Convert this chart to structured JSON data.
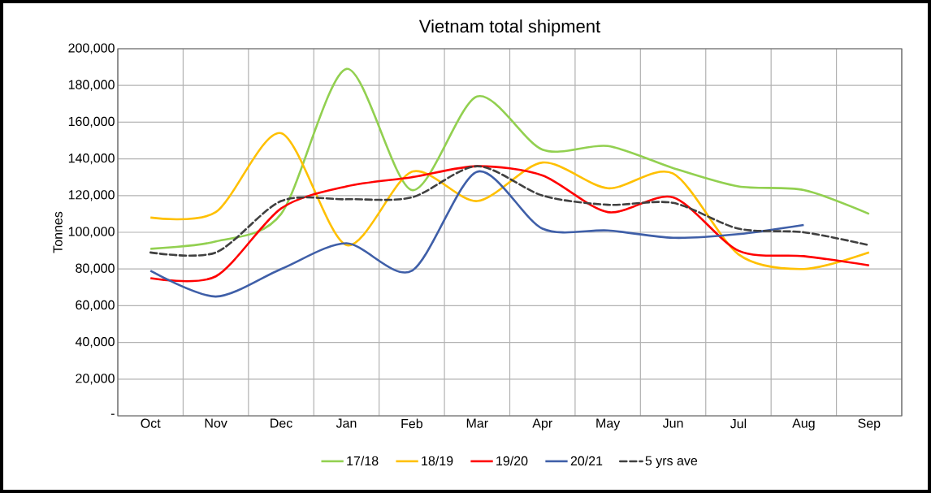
{
  "chart_data": {
    "type": "line",
    "title": "Vietnam total shipment",
    "ylabel": "Tonnes",
    "categories": [
      "Oct",
      "Nov",
      "Dec",
      "Jan",
      "Feb",
      "Mar",
      "Apr",
      "May",
      "Jun",
      "Jul",
      "Aug",
      "Sep"
    ],
    "series": [
      {
        "name": "17/18",
        "color": "#92d050",
        "values": [
          91000,
          95000,
          110000,
          189000,
          123000,
          174000,
          145000,
          147000,
          135000,
          125000,
          123000,
          110000
        ]
      },
      {
        "name": "18/19",
        "color": "#ffc000",
        "values": [
          108000,
          111000,
          154000,
          93000,
          133000,
          117000,
          138000,
          124000,
          132000,
          88000,
          80000,
          89000
        ]
      },
      {
        "name": "19/20",
        "color": "#ff0000",
        "values": [
          75000,
          76000,
          113000,
          125000,
          130000,
          136000,
          131000,
          111000,
          119000,
          90000,
          87000,
          82000
        ]
      },
      {
        "name": "20/21",
        "color": "#3f5fa8",
        "values": [
          79000,
          65000,
          80000,
          94000,
          79000,
          133000,
          102000,
          101000,
          97000,
          99000,
          104000,
          null
        ]
      },
      {
        "name": "5 yrs ave",
        "color": "#404040",
        "line_style": "dashed",
        "values": [
          89000,
          89000,
          117000,
          118000,
          119000,
          136000,
          120000,
          115000,
          116000,
          102000,
          100000,
          93000
        ]
      }
    ],
    "ylim": [
      0,
      200000
    ],
    "yticks": [
      {
        "value": 0,
        "label": "-"
      },
      {
        "value": 20000,
        "label": "20,000"
      },
      {
        "value": 40000,
        "label": "40,000"
      },
      {
        "value": 60000,
        "label": "60,000"
      },
      {
        "value": 80000,
        "label": "80,000"
      },
      {
        "value": 100000,
        "label": "100,000"
      },
      {
        "value": 120000,
        "label": "120,000"
      },
      {
        "value": 140000,
        "label": "140,000"
      },
      {
        "value": 160000,
        "label": "160,000"
      },
      {
        "value": 180000,
        "label": "180,000"
      },
      {
        "value": 200000,
        "label": "200,000"
      }
    ],
    "grid": true,
    "legend": "bottom"
  }
}
